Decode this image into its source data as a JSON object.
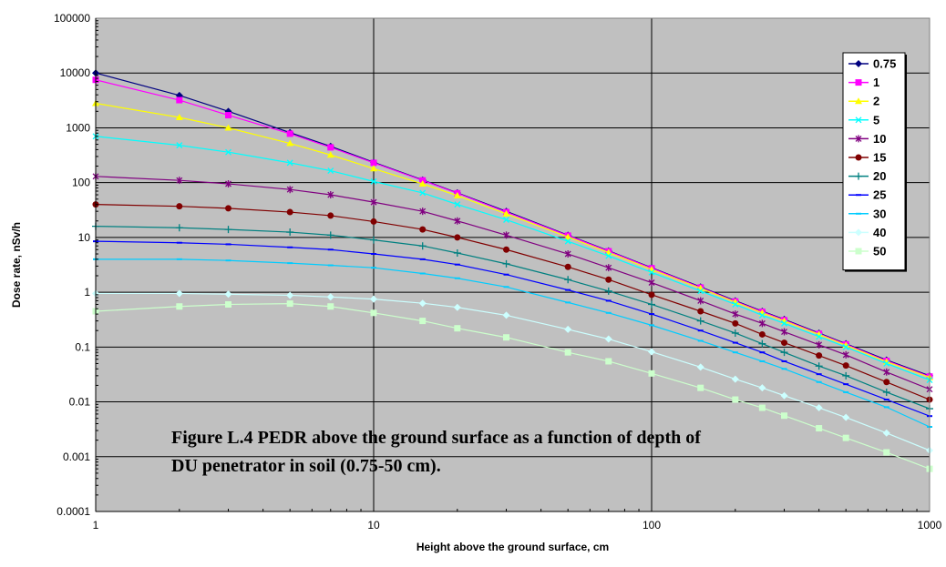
{
  "chart_data": {
    "type": "line",
    "x_scale": "log",
    "y_scale": "log",
    "xlim": [
      1,
      1000
    ],
    "ylim": [
      0.0001,
      100000
    ],
    "grid": true,
    "legend_position": "right",
    "background": "#C0C0C0",
    "xlabel": "Height above the ground surface, cm",
    "ylabel": "Dose rate, nSv/h",
    "caption": [
      "Figure L.4  PEDR above the ground surface as a function of depth of",
      "DU penetrator in soil (0.75-50 cm)."
    ],
    "x_ticks": [
      1,
      10,
      100,
      1000
    ],
    "x_tick_labels": [
      "1",
      "10",
      "100",
      "1000"
    ],
    "y_ticks": [
      100000,
      10000,
      1000,
      100,
      10,
      1,
      0.1,
      0.01,
      0.001,
      0.0001
    ],
    "y_tick_labels": [
      "100000",
      "10000",
      "1000",
      "100",
      "10",
      "1",
      "0.1",
      "0.01",
      "0.001",
      "0.0001"
    ],
    "x": [
      1,
      2,
      3,
      5,
      7,
      10,
      15,
      20,
      30,
      50,
      70,
      100,
      150,
      200,
      250,
      300,
      400,
      500,
      700,
      1000
    ],
    "series": [
      {
        "name": "0.75",
        "color": "#000080",
        "marker": "diamond",
        "values": [
          10000,
          3900,
          2000,
          820,
          460,
          235,
          112,
          65,
          30,
          11,
          5.7,
          2.8,
          1.25,
          0.7,
          0.45,
          0.32,
          0.18,
          0.115,
          0.058,
          0.03
        ]
      },
      {
        "name": "1",
        "color": "#FF00FF",
        "marker": "square",
        "values": [
          7500,
          3200,
          1700,
          780,
          440,
          230,
          110,
          64,
          29,
          10.8,
          5.6,
          2.75,
          1.22,
          0.68,
          0.44,
          0.31,
          0.175,
          0.112,
          0.056,
          0.029
        ]
      },
      {
        "name": "2",
        "color": "#FFFF00",
        "marker": "triangle",
        "values": [
          2800,
          1550,
          1000,
          520,
          320,
          180,
          95,
          58,
          27,
          10.2,
          5.3,
          2.6,
          1.18,
          0.66,
          0.42,
          0.3,
          0.17,
          0.108,
          0.054,
          0.028
        ]
      },
      {
        "name": "5",
        "color": "#00FFFF",
        "marker": "x",
        "values": [
          700,
          480,
          360,
          230,
          165,
          105,
          65,
          40,
          21,
          8.5,
          4.6,
          2.3,
          1.05,
          0.6,
          0.38,
          0.27,
          0.155,
          0.1,
          0.05,
          0.025
        ]
      },
      {
        "name": "10",
        "color": "#800080",
        "marker": "star",
        "values": [
          130,
          110,
          95,
          75,
          60,
          44,
          30,
          20,
          11,
          5,
          2.8,
          1.5,
          0.7,
          0.4,
          0.27,
          0.19,
          0.11,
          0.072,
          0.035,
          0.017
        ]
      },
      {
        "name": "15",
        "color": "#800000",
        "marker": "circle",
        "values": [
          40,
          37,
          34,
          29,
          25,
          19.5,
          14,
          10,
          6,
          2.9,
          1.7,
          0.9,
          0.45,
          0.27,
          0.17,
          0.12,
          0.07,
          0.046,
          0.023,
          0.011
        ]
      },
      {
        "name": "20",
        "color": "#008080",
        "marker": "plus",
        "values": [
          16,
          15,
          14,
          12.5,
          11,
          9,
          7,
          5.2,
          3.3,
          1.7,
          1.05,
          0.6,
          0.3,
          0.18,
          0.115,
          0.08,
          0.045,
          0.03,
          0.015,
          0.0075
        ]
      },
      {
        "name": "25",
        "color": "#0000FF",
        "marker": "dash",
        "values": [
          8.5,
          8,
          7.5,
          6.6,
          6,
          5,
          4,
          3.2,
          2.1,
          1.1,
          0.7,
          0.4,
          0.2,
          0.12,
          0.08,
          0.055,
          0.032,
          0.021,
          0.011,
          0.0055
        ]
      },
      {
        "name": "30",
        "color": "#00CCFF",
        "marker": "dash",
        "values": [
          4,
          4,
          3.8,
          3.4,
          3.1,
          2.8,
          2.2,
          1.8,
          1.25,
          0.65,
          0.42,
          0.25,
          0.13,
          0.08,
          0.055,
          0.04,
          0.023,
          0.015,
          0.008,
          0.0035
        ]
      },
      {
        "name": "40",
        "color": "#CCFFFF",
        "marker": "diamond",
        "values": [
          0.95,
          0.95,
          0.92,
          0.88,
          0.82,
          0.75,
          0.63,
          0.53,
          0.38,
          0.21,
          0.14,
          0.082,
          0.043,
          0.026,
          0.018,
          0.013,
          0.0078,
          0.0052,
          0.0027,
          0.0013
        ]
      },
      {
        "name": "50",
        "color": "#CCFFCC",
        "marker": "square",
        "values": [
          0.45,
          0.55,
          0.6,
          0.62,
          0.55,
          0.42,
          0.3,
          0.22,
          0.15,
          0.08,
          0.055,
          0.033,
          0.018,
          0.011,
          0.0078,
          0.0056,
          0.0033,
          0.0022,
          0.0012,
          0.0006
        ]
      }
    ]
  }
}
